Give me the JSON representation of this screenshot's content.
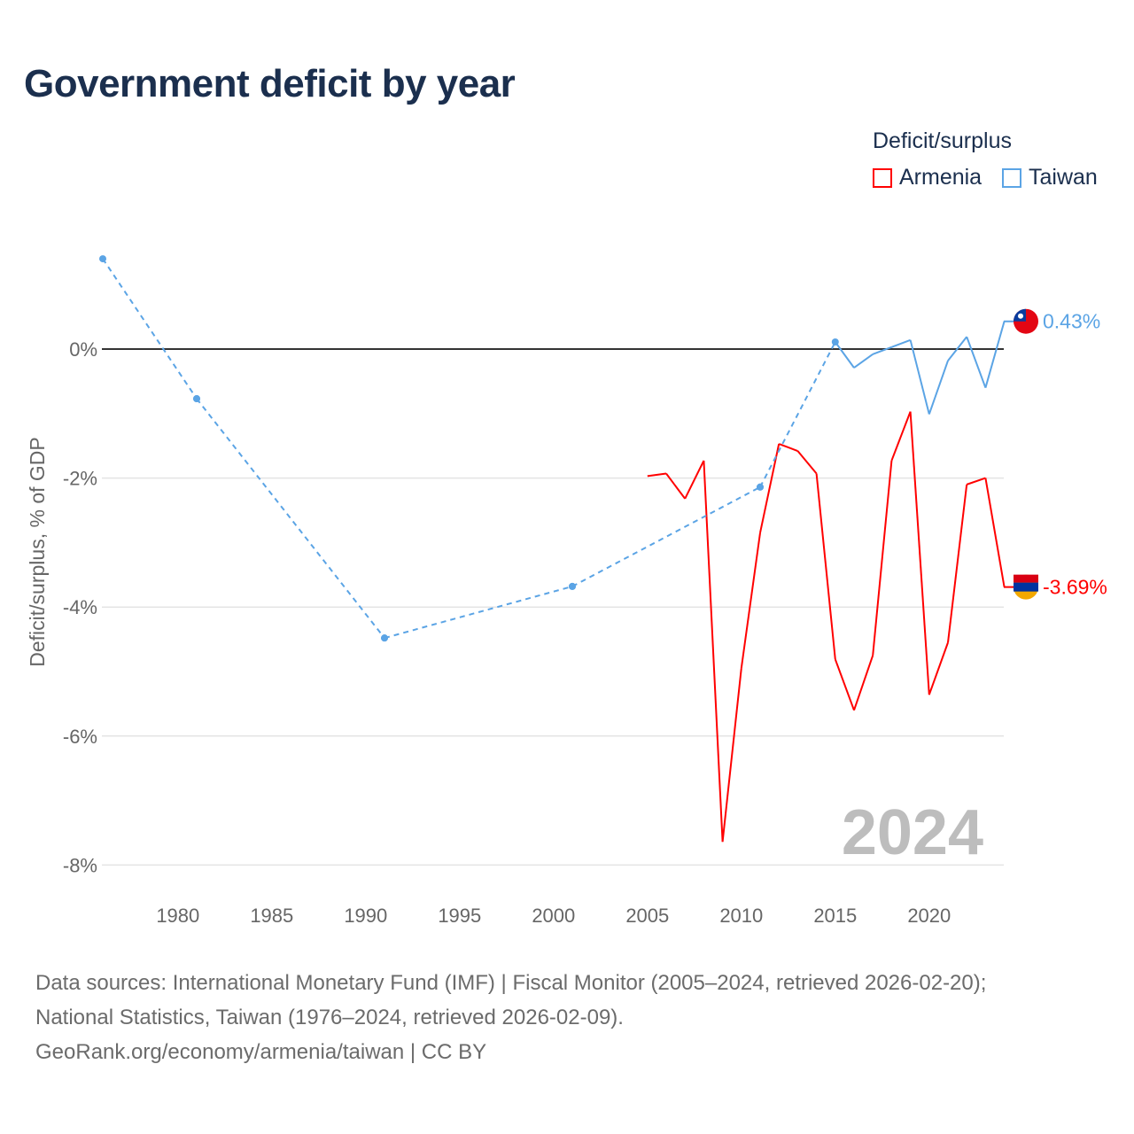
{
  "chart_data": {
    "type": "line",
    "title": "Government deficit by year",
    "ylabel": "Deficit/surplus, % of GDP",
    "xlabel": "",
    "xlim": [
      1976,
      2024
    ],
    "ylim": [
      -8,
      1.4
    ],
    "xticks": [
      "1980",
      "1985",
      "1990",
      "1995",
      "2000",
      "2005",
      "2010",
      "2015",
      "2020"
    ],
    "yticks": [
      "0%",
      "-2%",
      "-4%",
      "-6%",
      "-8%"
    ],
    "legend_title": "Deficit/surplus",
    "legend_position": "top-right",
    "year_label": "2024",
    "series": [
      {
        "name": "Armenia",
        "color": "#ff0000",
        "end_label": "-3.69%",
        "x": [
          2005,
          2006,
          2007,
          2008,
          2009,
          2010,
          2011,
          2012,
          2013,
          2014,
          2015,
          2016,
          2017,
          2018,
          2019,
          2020,
          2021,
          2022,
          2023,
          2024
        ],
        "y": [
          -1.97,
          -1.93,
          -2.32,
          -1.73,
          -7.64,
          -4.95,
          -2.85,
          -1.47,
          -1.58,
          -1.93,
          -4.81,
          -5.6,
          -4.75,
          -1.73,
          -0.97,
          -5.36,
          -4.55,
          -2.1,
          -2.0,
          -3.69
        ]
      },
      {
        "name": "Taiwan",
        "color": "#5ba4e5",
        "end_label": "0.43%",
        "x": [
          1976,
          1981,
          1991,
          2001,
          2011,
          2015,
          2016,
          2017,
          2018,
          2019,
          2020,
          2021,
          2022,
          2023,
          2024
        ],
        "y": [
          1.4,
          -0.77,
          -4.48,
          -3.68,
          -2.14,
          0.11,
          -0.29,
          -0.08,
          0.03,
          0.14,
          -1.01,
          -0.18,
          0.19,
          -0.6,
          0.43
        ]
      }
    ]
  },
  "footer": {
    "line1": "Data sources: International Monetary Fund (IMF) | Fiscal Monitor (2005–2024, retrieved 2026-02-20);",
    "line2": "National Statistics, Taiwan (1976–2024, retrieved 2026-02-09).",
    "line3": "GeoRank.org/economy/armenia/taiwan | CC BY"
  }
}
